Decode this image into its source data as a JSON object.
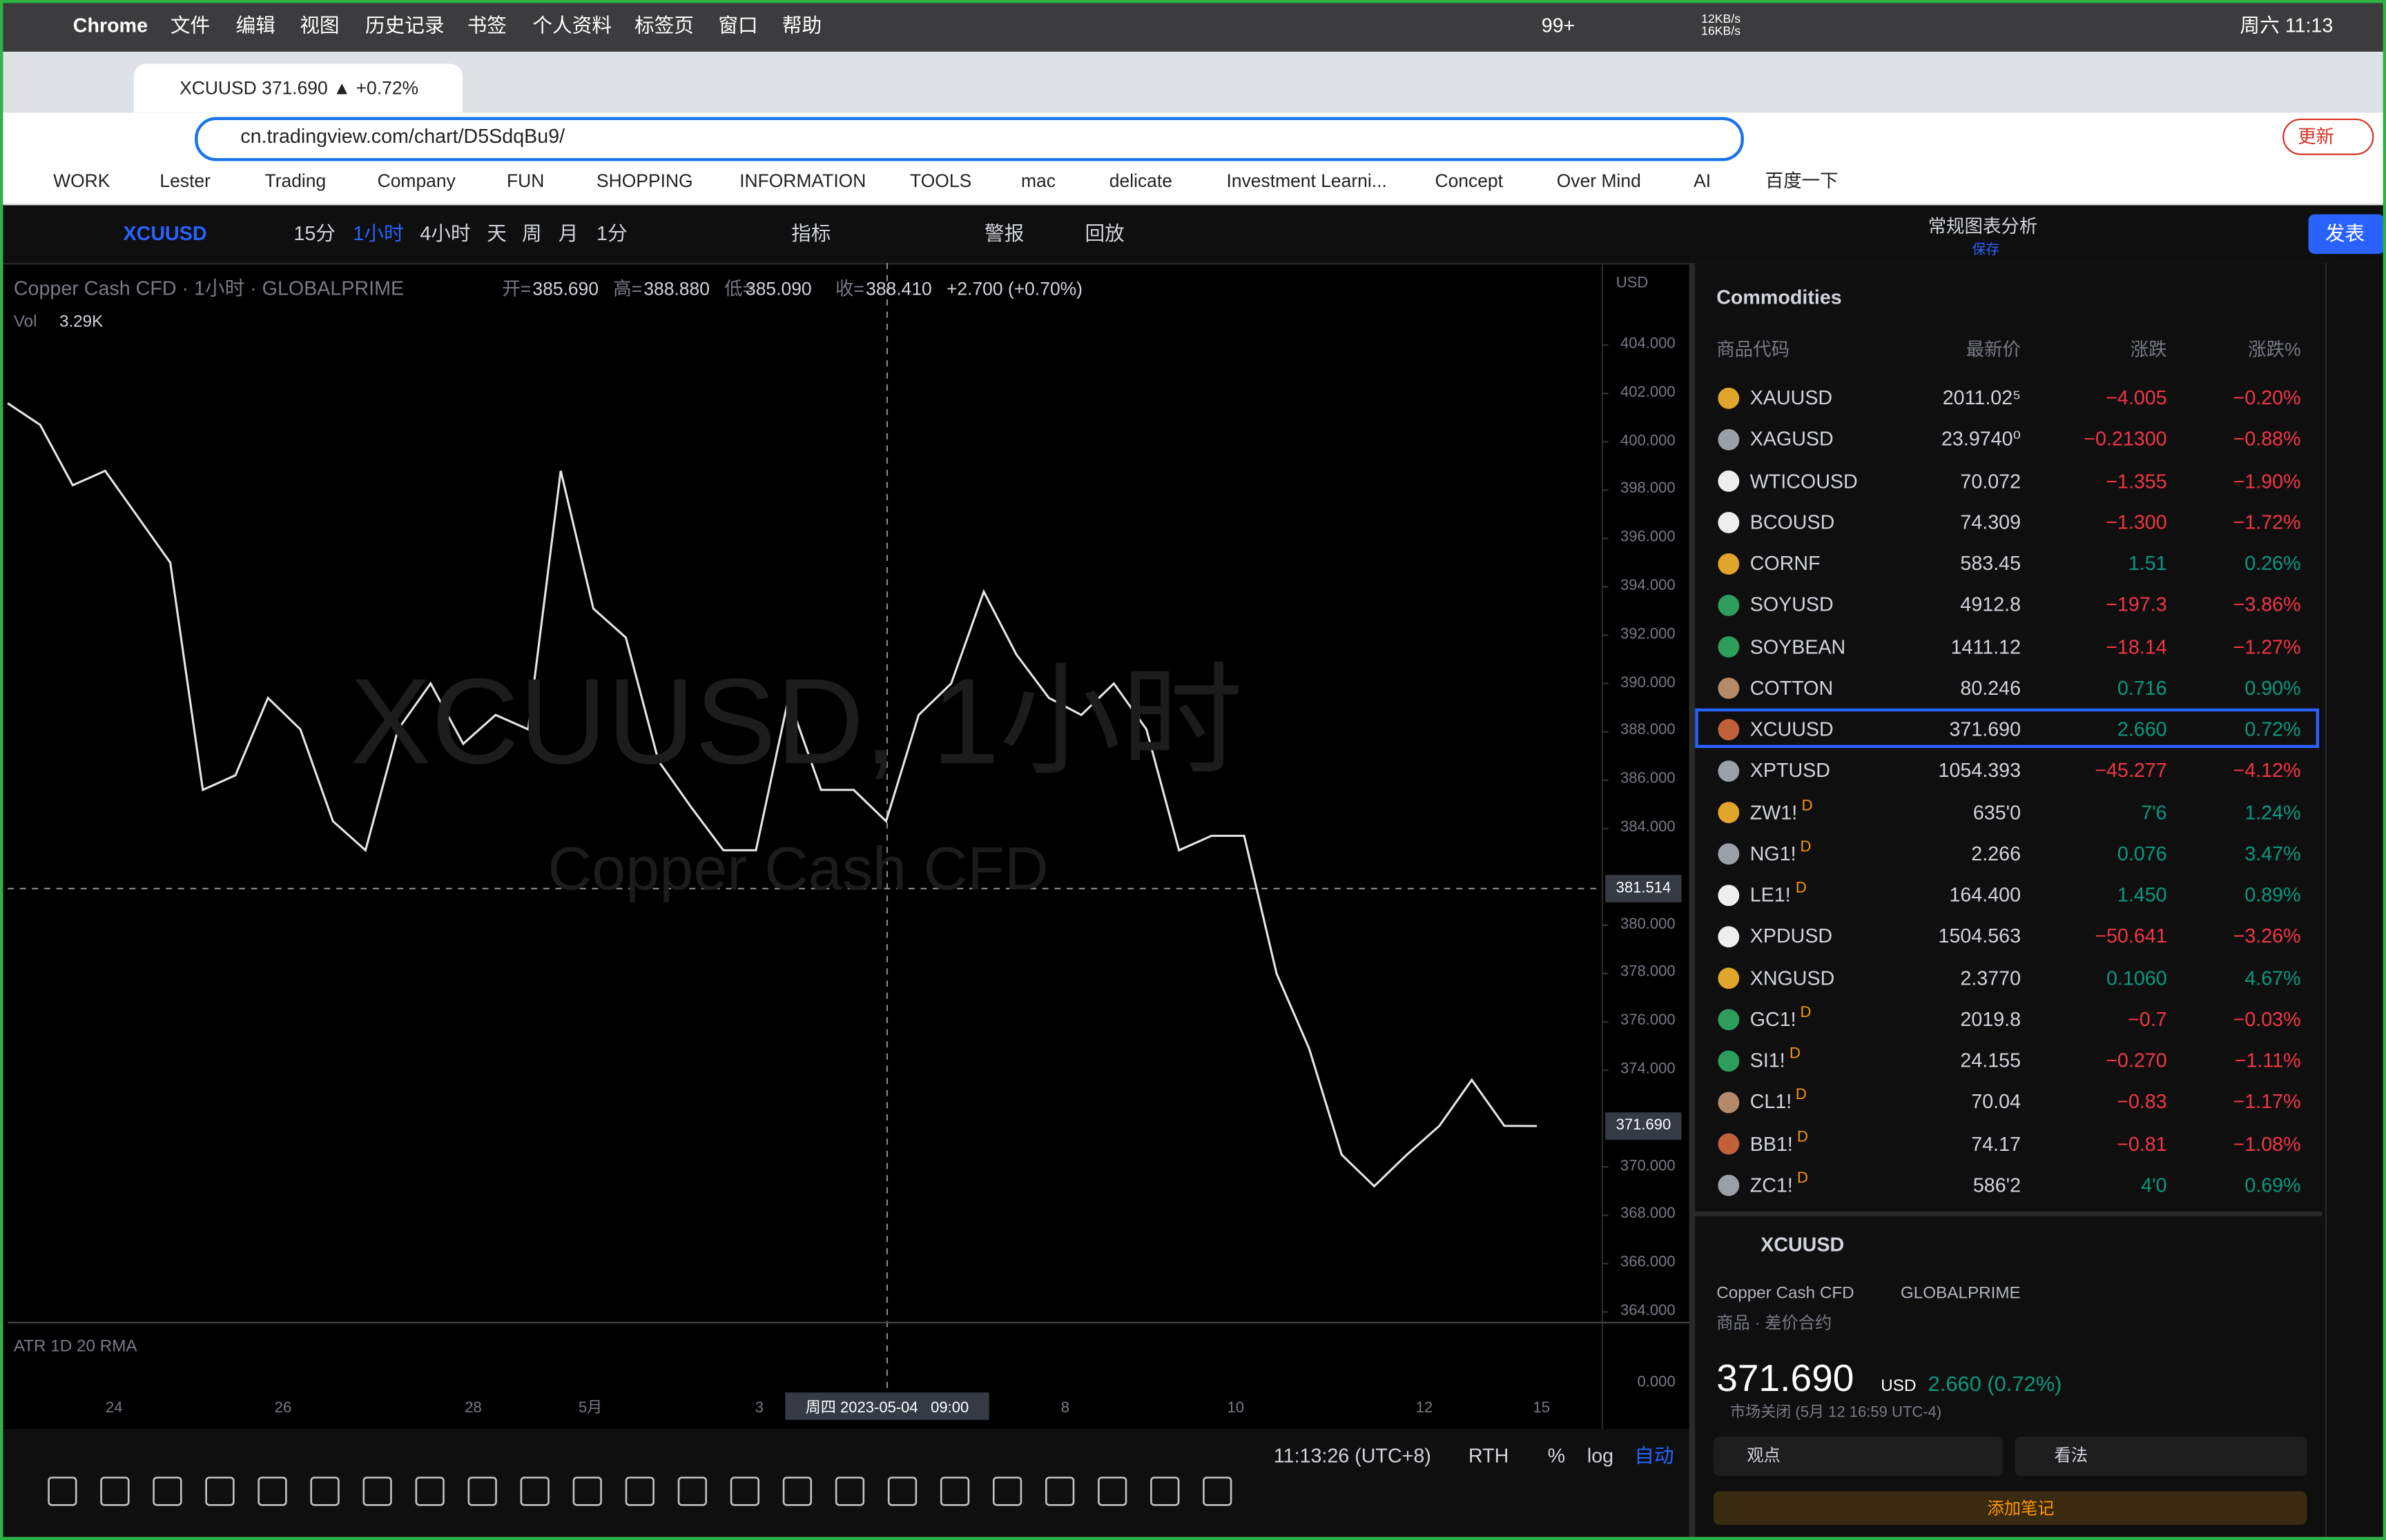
{
  "menubar": {
    "app": "Chrome",
    "items": [
      "文件",
      "编辑",
      "视图",
      "历史记录",
      "书签",
      "个人资料",
      "标签页",
      "窗口",
      "帮助"
    ],
    "badge": "99+",
    "net": "12KB/s 16KB/s",
    "clock": "周六 11:13"
  },
  "tab": {
    "title": "XCUUSD 371.690 ▲ +0.72% 常"
  },
  "url": "cn.tradingview.com/chart/D5SdqBu9/",
  "update": "更新",
  "bookmarks": [
    "WORK",
    "Lester",
    "Trading",
    "Company",
    "FUN",
    "SHOPPING",
    "INFORMATION",
    "TOOLS",
    "mac",
    "delicate",
    "Investment Learni...",
    "Concept",
    "Over Mind",
    "AI",
    "百度一下"
  ],
  "toolbar": {
    "symbol": "XCUUSD",
    "intervals": [
      "15分",
      "1小时",
      "4小时",
      "天",
      "周",
      "月",
      "1分"
    ],
    "indicators": "指标",
    "alert": "警报",
    "replay": "回放",
    "layout": "常规图表分析",
    "saved": "保存",
    "publish": "发表"
  },
  "legend": {
    "name": "Copper Cash CFD · 1小时 · GLOBALPRIME",
    "open_label": "开=",
    "open": "385.690",
    "high_label": "高=",
    "high": "388.880",
    "low_label": "低=",
    "low": "385.090",
    "close_label": "收=",
    "close": "388.410",
    "change": "+2.700 (+0.70%)",
    "vol_label": "Vol",
    "vol": "3.29K"
  },
  "watermark": {
    "symbol": "XCUUSD, 1小时",
    "desc": "Copper Cash CFD"
  },
  "price_axis": {
    "currency": "USD",
    "ylim": [
      364,
      404
    ],
    "ticks": [
      {
        "value": 404,
        "label": "404.000"
      },
      {
        "value": 402,
        "label": "402.000"
      },
      {
        "value": 400,
        "label": "400.000"
      },
      {
        "value": 398,
        "label": "398.000"
      },
      {
        "value": 396,
        "label": "396.000"
      },
      {
        "value": 394,
        "label": "394.000"
      },
      {
        "value": 392,
        "label": "392.000"
      },
      {
        "value": 390,
        "label": "390.000"
      },
      {
        "value": 388,
        "label": "388.000"
      },
      {
        "value": 386,
        "label": "386.000"
      },
      {
        "value": 384,
        "label": "384.000"
      },
      {
        "value": 380,
        "label": "380.000"
      },
      {
        "value": 378,
        "label": "378.000"
      },
      {
        "value": 376,
        "label": "376.000"
      },
      {
        "value": 374,
        "label": "374.000"
      },
      {
        "value": 370,
        "label": "370.000"
      },
      {
        "value": 368,
        "label": "368.000"
      },
      {
        "value": 366,
        "label": "366.000"
      },
      {
        "value": 364,
        "label": "364.000"
      }
    ],
    "crosshair": {
      "value": 381.514,
      "label": "381.514"
    },
    "last": {
      "value": 371.69,
      "label": "371.690"
    }
  },
  "prices": [
    401.6,
    400.7,
    398.2,
    398.8,
    396.9,
    395.0,
    385.6,
    386.2,
    389.4,
    388.1,
    384.3,
    383.1,
    388.1,
    390.0,
    387.5,
    388.7,
    388.1,
    398.8,
    393.1,
    391.9,
    386.8,
    384.9,
    383.1,
    383.1,
    389.4,
    385.6,
    385.6,
    384.3,
    388.7,
    390.0,
    393.8,
    391.2,
    389.4,
    388.7,
    390.0,
    388.1,
    383.1,
    383.7,
    383.7,
    378.0,
    374.9,
    370.5,
    369.2,
    370.5,
    371.7,
    373.6,
    371.7,
    371.69
  ],
  "time_axis": {
    "labels": [
      "24",
      "26",
      "28",
      "5月",
      "3",
      "8",
      "10",
      "12",
      "15"
    ],
    "crosshair": "周四 2023-05-04   09:00"
  },
  "indicator": {
    "name": "ATR 1D 20 RMA",
    "value": "0.000"
  },
  "status_bar": {
    "time": "11:13:26 (UTC+8)",
    "rth": "RTH",
    "pct": "%",
    "log": "log",
    "auto": "自动"
  },
  "watchlist": {
    "title": "Commodities",
    "columns": [
      "商品代码",
      "最新价",
      "涨跌",
      "涨跌%"
    ],
    "rows": [
      [
        "XAUUSD",
        "2011.02⁵",
        "−4.005",
        "−0.20%"
      ],
      [
        "XAGUSD",
        "23.9740⁰",
        "−0.21300",
        "−0.88%"
      ],
      [
        "WTICOUSD",
        "70.072",
        "−1.355",
        "−1.90%"
      ],
      [
        "BCOUSD",
        "74.309",
        "−1.300",
        "−1.72%"
      ],
      [
        "CORNF",
        "583.45",
        "1.51",
        "0.26%"
      ],
      [
        "SOYUSD",
        "4912.8",
        "−197.3",
        "−3.86%"
      ],
      [
        "SOYBEAN",
        "1411.12",
        "−18.14",
        "−1.27%"
      ],
      [
        "COTTON",
        "80.246",
        "0.716",
        "0.90%"
      ],
      [
        "XCUUSD",
        "371.690",
        "2.660",
        "0.72%"
      ],
      [
        "XPTUSD",
        "1054.393",
        "−45.277",
        "−4.12%"
      ],
      [
        "ZW1!",
        "635'0",
        "7'6",
        "1.24%"
      ],
      [
        "NG1!",
        "2.266",
        "0.076",
        "3.47%"
      ],
      [
        "LE1!",
        "164.400",
        "1.450",
        "0.89%"
      ],
      [
        "XPDUSD",
        "1504.563",
        "−50.641",
        "−3.26%"
      ],
      [
        "XNGUSD",
        "2.3770",
        "0.1060",
        "4.67%"
      ],
      [
        "GC1!",
        "2019.8",
        "−0.7",
        "−0.03%"
      ],
      [
        "SI1!",
        "24.155",
        "−0.270",
        "−1.11%"
      ],
      [
        "CL1!",
        "70.04",
        "−0.83",
        "−1.17%"
      ],
      [
        "BB1!",
        "74.17",
        "−0.81",
        "−1.08%"
      ],
      [
        "ZC1!",
        "586'2",
        "4'0",
        "0.69%"
      ]
    ],
    "delayed_mark": "D",
    "selected": 8
  },
  "details": {
    "symbol": "XCUUSD",
    "name": "Copper Cash CFD",
    "exchange": "GLOBALPRIME",
    "category": "商品 · 差价合约",
    "price": "371.690",
    "currency": "USD",
    "change": "2.660 (0.72%)",
    "market": "市场关闭 (5月 12 16:59 UTC-4)",
    "ideas": "观点",
    "opinions": "看法",
    "note": "添加笔记"
  }
}
